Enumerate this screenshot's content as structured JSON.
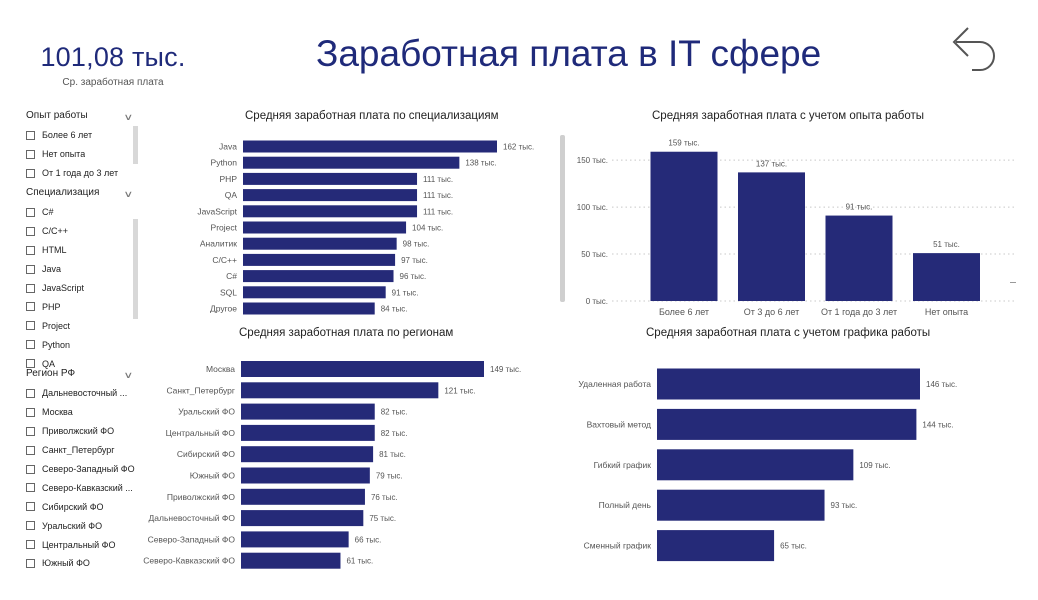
{
  "kpi": {
    "value": "101,08 тыс.",
    "label": "Ср. заработная плата"
  },
  "title": "Заработная плата в IT сфере",
  "icons": {
    "back": "back-arrow-icon",
    "chevron": "chevron-down-icon"
  },
  "colors": {
    "bar": "#252a78",
    "title": "#1f2a7a",
    "grid": "#c8c8c8"
  },
  "filters": {
    "experience": {
      "label": "Опыт работы",
      "items": [
        "Более 6 лет",
        "Нет опыта",
        "От 1 года до 3 лет"
      ]
    },
    "specialization": {
      "label": "Специализация",
      "items": [
        "C#",
        "C/C++",
        "HTML",
        "Java",
        "JavaScript",
        "PHP",
        "Project",
        "Python",
        "QA"
      ]
    },
    "region": {
      "label": "Регион РФ",
      "items": [
        "Дальневосточный ...",
        "Москва",
        "Приволжский ФО",
        "Санкт_Петербург",
        "Северо-Западный ФО",
        "Северо-Кавказский ...",
        "Сибирский ФО",
        "Уральский ФО",
        "Центральный ФО",
        "Южный ФО"
      ]
    }
  },
  "chart_data": [
    {
      "id": "spec",
      "type": "bar",
      "orientation": "horizontal",
      "title": "Средняя заработная плата по специализациям",
      "categories": [
        "Java",
        "Python",
        "PHP",
        "QA",
        "JavaScript",
        "Project",
        "Аналитик",
        "C/C++",
        "C#",
        "SQL",
        "Другое"
      ],
      "values": [
        162,
        138,
        111,
        111,
        111,
        104,
        98,
        97,
        96,
        91,
        84
      ],
      "labels": [
        "162 тыс.",
        "138 тыс.",
        "111 тыс.",
        "111 тыс.",
        "111 тыс.",
        "104 тыс.",
        "98 тыс.",
        "97 тыс.",
        "96 тыс.",
        "91 тыс.",
        "84 тыс."
      ],
      "unit": "тыс."
    },
    {
      "id": "exp",
      "type": "bar",
      "orientation": "vertical",
      "title": "Средняя заработная плата с учетом опыта работы",
      "categories": [
        "Более 6 лет",
        "От 3 до 6 лет",
        "От 1 года до 3 лет",
        "Нет опыта"
      ],
      "values": [
        159,
        137,
        91,
        51
      ],
      "labels": [
        "159 тыс.",
        "137 тыс.",
        "91 тыс.",
        "51 тыс."
      ],
      "yticks": [
        0,
        50,
        100,
        150
      ],
      "ytick_labels": [
        "0 тыс.",
        "50 тыс.",
        "100 тыс.",
        "150 тыс."
      ],
      "ylim": [
        0,
        170
      ],
      "grid": true,
      "unit": "тыс."
    },
    {
      "id": "region",
      "type": "bar",
      "orientation": "horizontal",
      "title": "Средняя заработная плата по регионам",
      "categories": [
        "Москва",
        "Санкт_Петербург",
        "Уральский ФО",
        "Центральный ФО",
        "Сибирский ФО",
        "Южный ФО",
        "Приволжский ФО",
        "Дальневосточный ФО",
        "Северо-Западный ФО",
        "Северо-Кавказский ФО"
      ],
      "values": [
        149,
        121,
        82,
        82,
        81,
        79,
        76,
        75,
        66,
        61
      ],
      "labels": [
        "149 тыс.",
        "121 тыс.",
        "82 тыс.",
        "82 тыс.",
        "81 тыс.",
        "79 тыс.",
        "76 тыс.",
        "75 тыс.",
        "66 тыс.",
        "61 тыс."
      ],
      "unit": "тыс."
    },
    {
      "id": "schedule",
      "type": "bar",
      "orientation": "horizontal",
      "title": "Средняя заработная плата с учетом графика работы",
      "categories": [
        "Удаленная работа",
        "Вахтовый метод",
        "Гибкий график",
        "Полный день",
        "Сменный график"
      ],
      "values": [
        146,
        144,
        109,
        93,
        65
      ],
      "labels": [
        "146 тыс.",
        "144 тыс.",
        "109 тыс.",
        "93 тыс.",
        "65 тыс."
      ],
      "unit": "тыс."
    }
  ]
}
